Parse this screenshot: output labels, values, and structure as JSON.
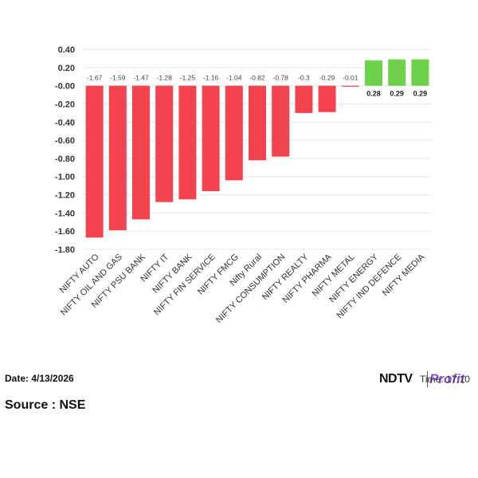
{
  "chart_data": {
    "type": "bar",
    "categories": [
      "NIFTY AUTO",
      "NIFTY OIL AND GAS",
      "NIFTY PSU BANK",
      "NIFTY IT",
      "NIFTY BANK",
      "NIFTY FIN SERVICE",
      "NIFTY FMCG",
      "Nifty Rural",
      "NIFTY CONSUMPTION",
      "NIFTY REALTY",
      "NIFTY PHARMA",
      "NIFTY METAL",
      "NIFTY ENERGY",
      "NIFTY IND DEFENCE",
      "NIFTY MEDIA"
    ],
    "values": [
      -1.67,
      -1.59,
      -1.47,
      -1.28,
      -1.25,
      -1.16,
      -1.04,
      -0.82,
      -0.78,
      -0.3,
      -0.29,
      -0.01,
      0.28,
      0.29,
      0.29
    ],
    "value_labels": [
      "-1.67",
      "-1.59",
      "-1.47",
      "-1.28",
      "-1.25",
      "-1.16",
      "-1.04",
      "-0.82",
      "-0.78",
      "-0.3",
      "-0.29",
      "-0.01",
      "0.28",
      "0.29",
      "0.29"
    ],
    "yticks": [
      "0.40",
      "0.20",
      "-0.00",
      "-0.20",
      "-0.40",
      "-0.60",
      "-0.80",
      "-1.00",
      "-1.20",
      "-1.40",
      "-1.60",
      "-1.80"
    ],
    "ylim": [
      -1.8,
      0.4
    ],
    "grid": true,
    "colors": {
      "negative": "#f4434f",
      "positive": "#6dd14a",
      "grid": "#e6e6e6",
      "axis_text": "#333333"
    }
  },
  "footer": {
    "date": "Date: 4/13/2026",
    "source": "Source : NSE",
    "time": "Time: 17:10",
    "logo_primary": "NDTV",
    "logo_secondary": "Profit"
  }
}
